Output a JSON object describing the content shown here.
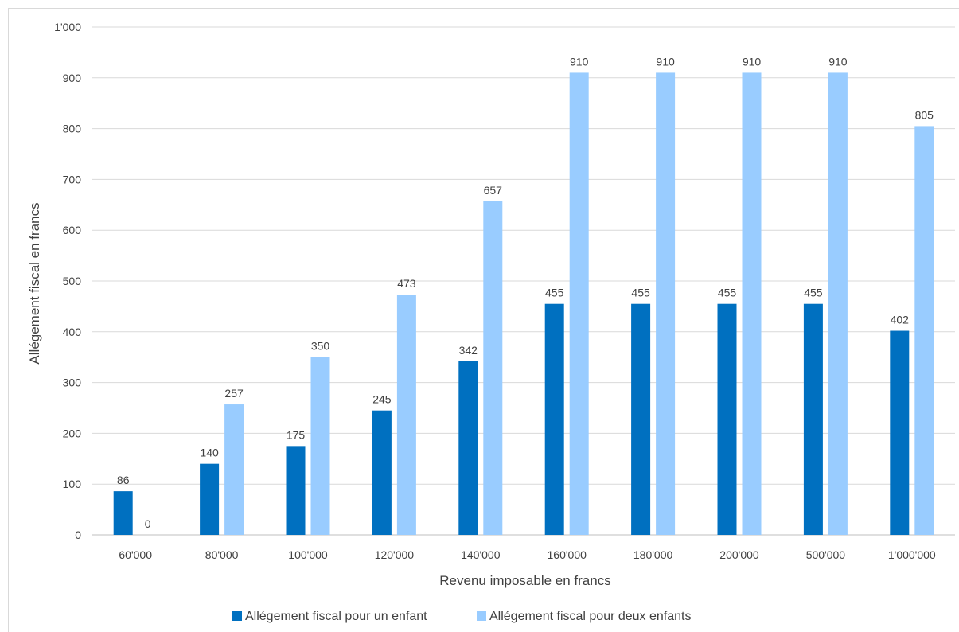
{
  "chart_data": {
    "type": "bar",
    "title": "",
    "xlabel": "Revenu imposable en francs",
    "ylabel": "Allégement fiscal en francs",
    "ylim": [
      0,
      1000
    ],
    "yticks": [
      0,
      100,
      200,
      300,
      400,
      500,
      600,
      700,
      800,
      900,
      1000
    ],
    "ytick_labels": [
      "0",
      "100",
      "200",
      "300",
      "400",
      "500",
      "600",
      "700",
      "800",
      "900",
      "1'000"
    ],
    "categories": [
      "60'000",
      "80'000",
      "100'000",
      "120'000",
      "140'000",
      "160'000",
      "180'000",
      "200'000",
      "500'000",
      "1'000'000"
    ],
    "series": [
      {
        "name": "Allégement fiscal pour un enfant",
        "color": "#0070c0",
        "values": [
          86,
          140,
          175,
          245,
          342,
          455,
          455,
          455,
          455,
          402
        ]
      },
      {
        "name": "Allégement fiscal pour deux enfants",
        "color": "#99ccff",
        "values": [
          0,
          257,
          350,
          473,
          657,
          910,
          910,
          910,
          910,
          805
        ]
      }
    ],
    "grid": true,
    "legend_position": "bottom"
  }
}
